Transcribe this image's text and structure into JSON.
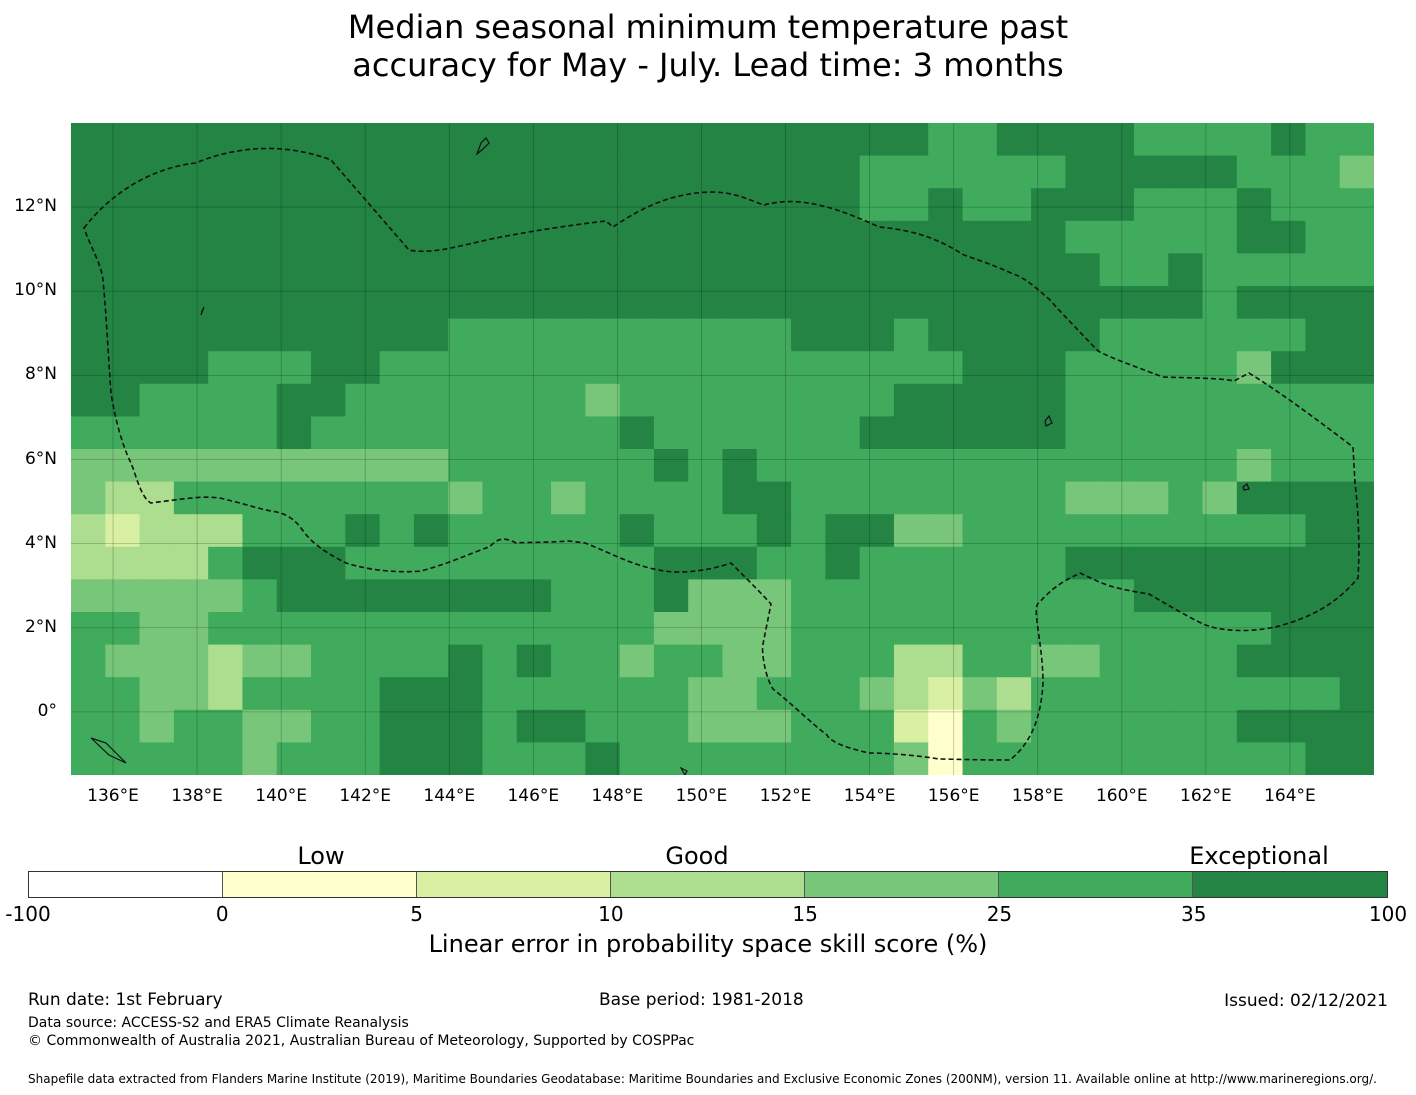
{
  "title": {
    "line1": "Median seasonal minimum temperature past",
    "line2": "accuracy for May - July. Lead time: 3 months"
  },
  "map": {
    "lat_labels": [
      "12°N",
      "10°N",
      "8°N",
      "6°N",
      "4°N",
      "2°N",
      "0°"
    ],
    "lon_labels": [
      "136°E",
      "138°E",
      "140°E",
      "142°E",
      "144°E",
      "146°E",
      "148°E",
      "150°E",
      "152°E",
      "154°E",
      "156°E",
      "158°E",
      "160°E",
      "162°E",
      "164°E"
    ],
    "lon_range": [
      135.0,
      166.0
    ],
    "lat_range": [
      -1.5,
      14.0
    ],
    "grid": {
      "cols": 38,
      "rows": 20,
      "cell_code_note": "skill class per cell: 1=0-5, 2=5-10, 3=10-15, 4=15-25, 5=25-35, 6=35-100",
      "cells": [
        "66666666666666666666666665566665555655",
        "66666666666666666666666555555666665554",
        "66666666666666666666666556556665556555",
        "66666666666666666666666666666555556655",
        "66666666666666666666666666666655655555",
        "66666666666666666666666666666666656666",
        "66666666666555555555566656666655555566",
        "66665556655555555555555555666555554666",
        "66555566555555545555555566666555555555",
        "55555565555555556555555666666555555555",
        "44444444444555555656555555555555554555",
        "43355555555455455556655555555444546666",
        "32333555656555556555656644555555555566",
        "33335666555555555666556555555666666666",
        "44444566666666555644455555555556666666",
        "55445555555555555444455555555555555666",
        "54443445555656554554455533554455556666",
        "55443555566655555544555432435555555556",
        "55455445566656655544455521545555556666",
        "55555455566655565555555541555555555566"
      ]
    }
  },
  "colorbar": {
    "categories": [
      "Low",
      "Good",
      "Exceptional"
    ],
    "ticks": [
      "-100",
      "0",
      "5",
      "10",
      "15",
      "25",
      "35",
      "100"
    ],
    "colors": [
      "#ffffff",
      "#ffffcc",
      "#d9f0a3",
      "#addd8e",
      "#78c679",
      "#41ab5d",
      "#238443"
    ],
    "caption": "Linear error in probability space skill score (%)"
  },
  "footer": {
    "run_date": "Run date: 1st February",
    "base_period": "Base period: 1981-2018",
    "issued": "Issued: 02/12/2021",
    "data_source": "Data source: ACCESS-S2 and ERA5 Climate Reanalysis",
    "copyright": "© Commonwealth of Australia 2021, Australian Bureau of Meteorology, Supported by COSPPac",
    "shapefile": "Shapefile data extracted from Flanders Marine Institute (2019), Maritime Boundaries Geodatabase: Maritime Boundaries and Exclusive Economic Zones (200NM), version 11. Available online at http://www.marineregions.org/."
  }
}
